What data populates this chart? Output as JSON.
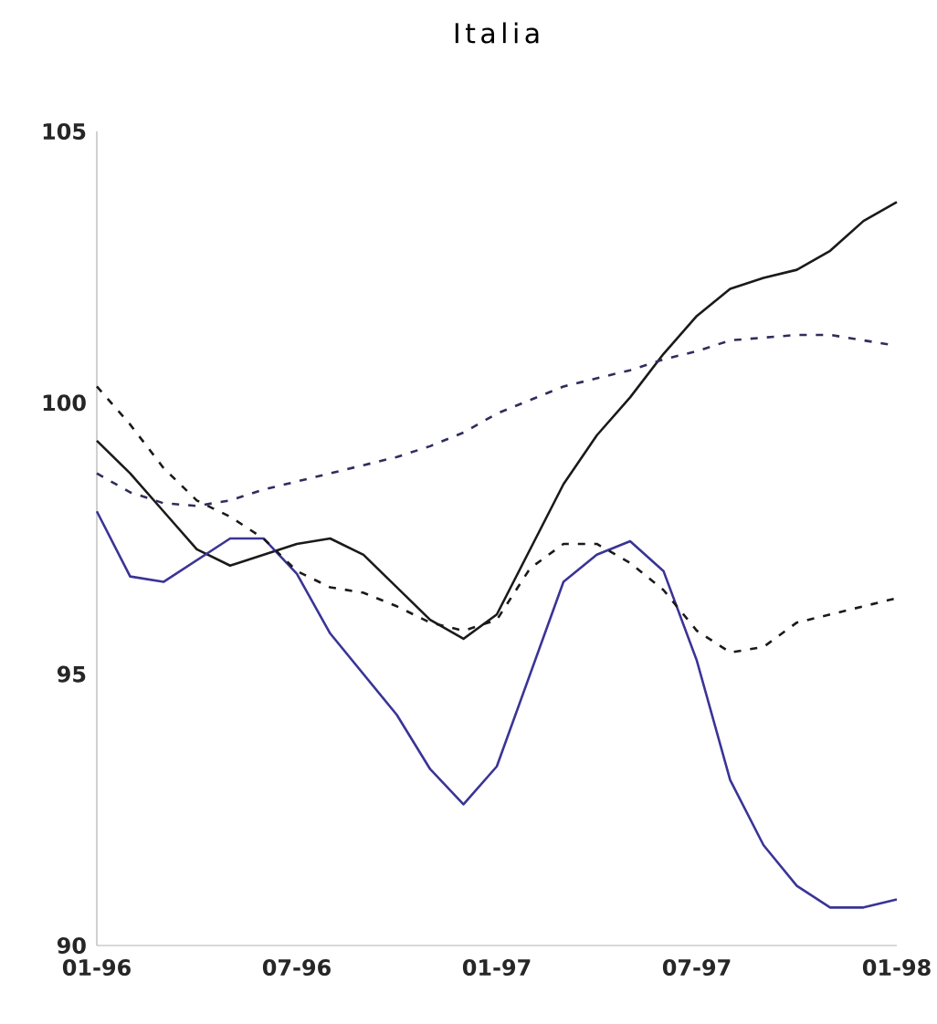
{
  "chart_data": {
    "type": "line",
    "title": "Italia",
    "categories": [
      "01-96",
      null,
      null,
      null,
      null,
      null,
      "07-96",
      null,
      null,
      null,
      null,
      null,
      "01-97",
      null,
      null,
      null,
      null,
      null,
      "07-97",
      null,
      null,
      null,
      null,
      null,
      "01-98"
    ],
    "ylim": [
      90,
      105
    ],
    "yticks": [
      90,
      95,
      100,
      105
    ],
    "series": [
      {
        "color": "#1a1a1a",
        "line_style": "solid",
        "values": [
          99.3,
          98.7,
          98.0,
          97.3,
          97.0,
          97.2,
          97.4,
          97.5,
          97.2,
          96.6,
          96.0,
          95.65,
          96.1,
          97.3,
          98.5,
          99.4,
          100.1,
          100.9,
          101.6,
          102.1,
          102.3,
          102.45,
          102.8,
          103.35,
          103.7
        ]
      },
      {
        "color": "#3a3496",
        "line_style": "solid",
        "values": [
          98.0,
          96.8,
          96.7,
          97.1,
          97.5,
          97.5,
          96.85,
          95.75,
          95.0,
          94.25,
          93.25,
          92.6,
          93.3,
          95.0,
          96.7,
          97.2,
          97.45,
          96.9,
          95.25,
          93.05,
          91.85,
          91.1,
          90.7,
          90.7,
          90.85
        ]
      },
      {
        "color": "#2e2e5c",
        "line_style": "dashed",
        "values": [
          98.7,
          98.35,
          98.15,
          98.1,
          98.2,
          98.4,
          98.55,
          98.7,
          98.85,
          99.0,
          99.2,
          99.45,
          99.8,
          100.05,
          100.3,
          100.45,
          100.6,
          100.8,
          100.95,
          101.15,
          101.2,
          101.25,
          101.25,
          101.15,
          101.05
        ]
      },
      {
        "color": "#1a1a1a",
        "line_style": "dashed",
        "values": [
          100.3,
          99.6,
          98.8,
          98.2,
          97.9,
          97.5,
          96.9,
          96.6,
          96.5,
          96.25,
          95.95,
          95.8,
          96.0,
          96.95,
          97.4,
          97.4,
          97.05,
          96.55,
          95.8,
          95.4,
          95.5,
          95.95,
          96.1,
          96.25,
          96.4
        ]
      }
    ]
  }
}
